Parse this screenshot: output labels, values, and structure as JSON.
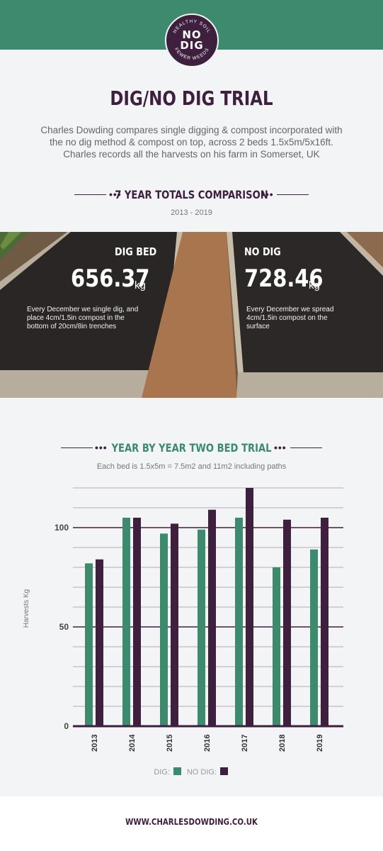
{
  "logo": {
    "ring_top": "HEALTHY SOIL",
    "ring_bottom": "FEWER WEEDS",
    "line1": "NO",
    "line2": "DIG"
  },
  "title": "DIG/NO DIG TRIAL",
  "intro": "Charles Dowding compares single digging & compost incorporated with the no dig method & compost on top, across 2 beds 1.5x5m/5x16ft. Charles records all the harvests on his farm in Somerset, UK",
  "totals": {
    "heading": "7 YEAR TOTALS COMPARISON",
    "dots": "•••",
    "years": "2013 - 2019",
    "dig": {
      "label": "DIG BED",
      "value": "656.37",
      "unit": "kg",
      "desc": "Every December we single dig, and place 4cm/1.5in compost in the bottom of 20cm/8in trenches"
    },
    "nodig": {
      "label": "NO DIG",
      "value": "728.46",
      "unit": "kg",
      "desc": "Every December we spread 4cm/1.5in compost on the surface"
    }
  },
  "trial": {
    "heading": "YEAR BY YEAR TWO BED TRIAL",
    "dots": "•••",
    "note": "Each bed is 1.5x5m = 7.5m2 and 11m2 including paths"
  },
  "chart_data": {
    "type": "bar",
    "categories": [
      "2013",
      "2014",
      "2015",
      "2016",
      "2017",
      "2018",
      "2019"
    ],
    "series": [
      {
        "name": "DIG:",
        "color": "#3d8a6e",
        "values": [
          82,
          105,
          97,
          99,
          105,
          80,
          89
        ]
      },
      {
        "name": "NO DIG:",
        "color": "#3f1f3e",
        "values": [
          84,
          105,
          102,
          109,
          120,
          104,
          105
        ]
      }
    ],
    "ylabel": "Harvests Kg",
    "ylim": [
      0,
      120
    ],
    "yticks": [
      0,
      50,
      100
    ],
    "grid": true,
    "legend": "bottom"
  },
  "footer": {
    "url": "WWW.CHARLESDOWDING.CO.UK"
  }
}
